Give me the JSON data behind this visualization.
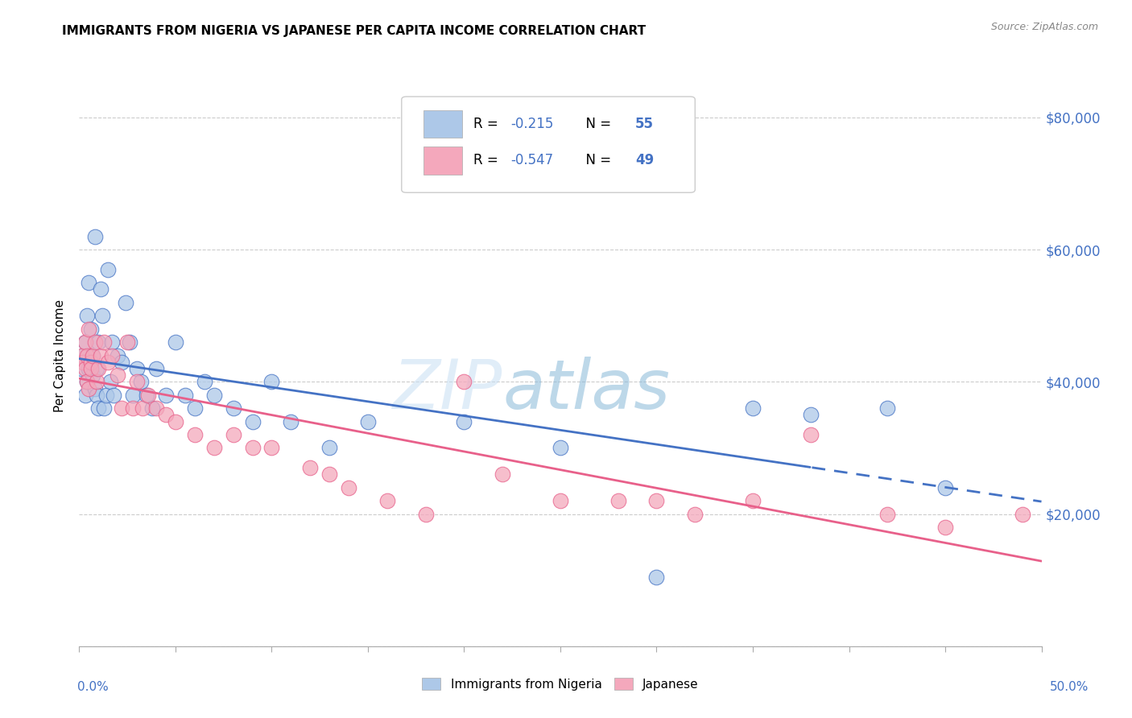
{
  "title": "IMMIGRANTS FROM NIGERIA VS JAPANESE PER CAPITA INCOME CORRELATION CHART",
  "source": "Source: ZipAtlas.com",
  "ylabel": "Per Capita Income",
  "y_ticks": [
    0,
    20000,
    40000,
    60000,
    80000
  ],
  "y_tick_labels": [
    "",
    "$20,000",
    "$40,000",
    "$60,000",
    "$80,000"
  ],
  "xlim": [
    0.0,
    0.5
  ],
  "ylim": [
    0,
    88000
  ],
  "nigeria_R": -0.215,
  "nigeria_N": 55,
  "japanese_R": -0.547,
  "japanese_N": 49,
  "nigeria_color": "#adc8e8",
  "japanese_color": "#f4a8bc",
  "nigeria_line_color": "#4472c4",
  "japanese_line_color": "#e8608a",
  "watermark_zip_color": "#c0d8f0",
  "watermark_atlas_color": "#90b8d8",
  "nigeria_x": [
    0.001,
    0.002,
    0.003,
    0.003,
    0.004,
    0.004,
    0.005,
    0.005,
    0.006,
    0.006,
    0.007,
    0.007,
    0.008,
    0.008,
    0.009,
    0.009,
    0.01,
    0.01,
    0.011,
    0.012,
    0.013,
    0.014,
    0.015,
    0.016,
    0.017,
    0.018,
    0.02,
    0.022,
    0.024,
    0.026,
    0.028,
    0.03,
    0.032,
    0.035,
    0.038,
    0.04,
    0.045,
    0.05,
    0.055,
    0.06,
    0.065,
    0.07,
    0.08,
    0.09,
    0.1,
    0.11,
    0.13,
    0.15,
    0.2,
    0.25,
    0.3,
    0.35,
    0.38,
    0.42,
    0.45
  ],
  "nigeria_y": [
    42000,
    44000,
    38000,
    46000,
    40000,
    50000,
    42000,
    55000,
    43000,
    48000,
    41000,
    44000,
    39000,
    62000,
    42000,
    38000,
    36000,
    46000,
    54000,
    50000,
    36000,
    38000,
    57000,
    40000,
    46000,
    38000,
    44000,
    43000,
    52000,
    46000,
    38000,
    42000,
    40000,
    38000,
    36000,
    42000,
    38000,
    46000,
    38000,
    36000,
    40000,
    38000,
    36000,
    34000,
    40000,
    34000,
    30000,
    34000,
    34000,
    30000,
    10500,
    36000,
    35000,
    36000,
    24000
  ],
  "japanese_x": [
    0.001,
    0.002,
    0.003,
    0.003,
    0.004,
    0.004,
    0.005,
    0.005,
    0.006,
    0.006,
    0.007,
    0.008,
    0.009,
    0.01,
    0.011,
    0.013,
    0.015,
    0.017,
    0.02,
    0.022,
    0.025,
    0.028,
    0.03,
    0.033,
    0.036,
    0.04,
    0.045,
    0.05,
    0.06,
    0.07,
    0.08,
    0.09,
    0.1,
    0.12,
    0.13,
    0.14,
    0.16,
    0.18,
    0.2,
    0.22,
    0.25,
    0.28,
    0.3,
    0.32,
    0.35,
    0.38,
    0.42,
    0.45,
    0.49
  ],
  "japanese_y": [
    44000,
    43000,
    42000,
    46000,
    40000,
    44000,
    39000,
    48000,
    43000,
    42000,
    44000,
    46000,
    40000,
    42000,
    44000,
    46000,
    43000,
    44000,
    41000,
    36000,
    46000,
    36000,
    40000,
    36000,
    38000,
    36000,
    35000,
    34000,
    32000,
    30000,
    32000,
    30000,
    30000,
    27000,
    26000,
    24000,
    22000,
    20000,
    40000,
    26000,
    22000,
    22000,
    22000,
    20000,
    22000,
    32000,
    20000,
    18000,
    20000
  ]
}
